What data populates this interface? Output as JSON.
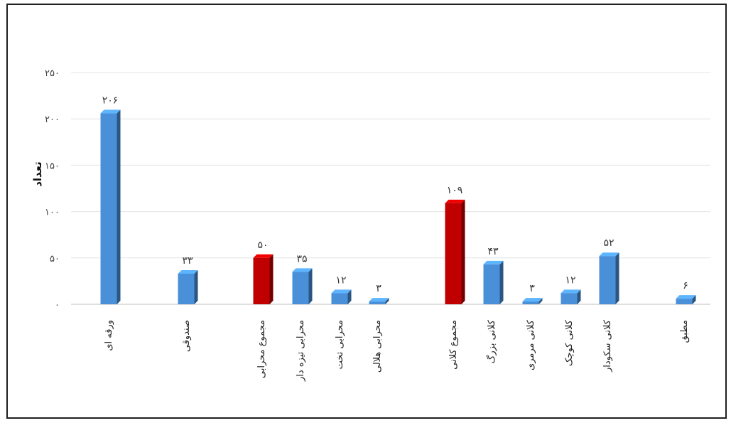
{
  "chart_data": {
    "type": "bar",
    "title": "",
    "xlabel": "",
    "ylabel": "تعداد",
    "ylim": [
      0,
      250
    ],
    "yticks": [
      0,
      50,
      100,
      150,
      200,
      250
    ],
    "ytick_labels": [
      "۰",
      "۵۰",
      "۱۰۰",
      "۱۵۰",
      "۲۰۰",
      "۲۵۰"
    ],
    "grid": true,
    "categories": [
      "ورقه ای",
      "صندوقی",
      "مجموع محرابی",
      "محرابی تیزه دار",
      "محرابی تخت",
      "محرابی هلالی",
      "مجموع کلانی",
      "کلانی بزرگ",
      "کلانی مرمری",
      "کلانی کوچک",
      "کلانی سکودار",
      "مطبق"
    ],
    "values": [
      206,
      33,
      50,
      35,
      12,
      3,
      109,
      43,
      3,
      12,
      52,
      6
    ],
    "data_labels": [
      "۲۰۶",
      "۳۳",
      "۵۰",
      "۳۵",
      "۱۲",
      "۳",
      "۱۰۹",
      "۴۳",
      "۳",
      "۱۲",
      "۵۲",
      "۶"
    ],
    "bar_colors": [
      "#4a90d9",
      "#4a90d9",
      "#c00000",
      "#4a90d9",
      "#4a90d9",
      "#4a90d9",
      "#c00000",
      "#4a90d9",
      "#4a90d9",
      "#4a90d9",
      "#4a90d9",
      "#4a90d9"
    ]
  }
}
